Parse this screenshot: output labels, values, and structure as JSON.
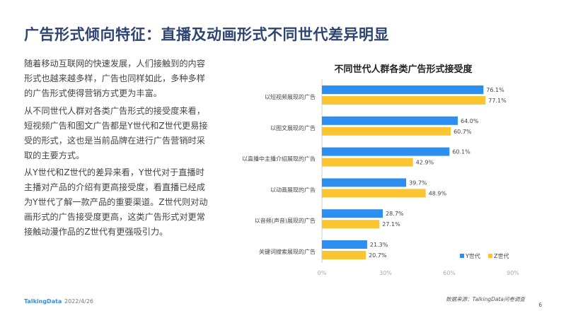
{
  "title": "广告形式倾向特征：直播及动画形式不同世代差异明显",
  "paragraphs": [
    "随着移动互联网的快速发展，人们接触到的内容形式也越来越多样，广告也同样如此，多种多样的广告形式使得营销方式更为丰富。",
    "从不同世代人群对各类广告形式的接受度来看，短视频广告和图文广告都是Y世代和Z世代更易接受的形式，这也是当前品牌在进行广告营销时采取的主要方式。",
    "从Y世代和Z世代的差异来看，Y世代对于直播时主播对产品的介绍有更高接受度，看直播已经成为Y世代了解一款产品的重要渠道。Z世代则对动画形式的广告接受度更高，这类广告形式对更常接触动漫作品的Z世代有更强吸引力。"
  ],
  "footer": {
    "logo": "TalkingData",
    "date": "2022/4/26",
    "source": "数据来源：TalkingData问卷调查",
    "page": "6"
  },
  "chart_data": {
    "type": "bar",
    "orientation": "horizontal",
    "title": "不同世代人群各类广告形式接受度",
    "categories": [
      "以短视频展现的广告",
      "以图文展现的广告",
      "以直播中主播介绍展现的广告",
      "以动画展现的广告",
      "以音频(声音)展现的广告",
      "关键词搜索展现的广告"
    ],
    "series": [
      {
        "name": "Y世代",
        "color": "#2b8ef0",
        "values": [
          76.1,
          64.0,
          60.1,
          39.7,
          28.7,
          21.3
        ],
        "labels": [
          "76.1%",
          "64.0%",
          "60.1%",
          "39.7%",
          "28.7%",
          "21.3%"
        ]
      },
      {
        "name": "Z世代",
        "color": "#fbc531",
        "values": [
          77.1,
          60.7,
          42.9,
          48.9,
          27.1,
          20.7
        ],
        "labels": [
          "77.1%",
          "60.7%",
          "42.9%",
          "48.9%",
          "27.1%",
          "20.7%"
        ]
      }
    ],
    "xlim": [
      0,
      90
    ],
    "xticks": [
      "0%",
      "30%",
      "60%",
      "90%"
    ],
    "legend": "bottom-right",
    "grid": false
  }
}
